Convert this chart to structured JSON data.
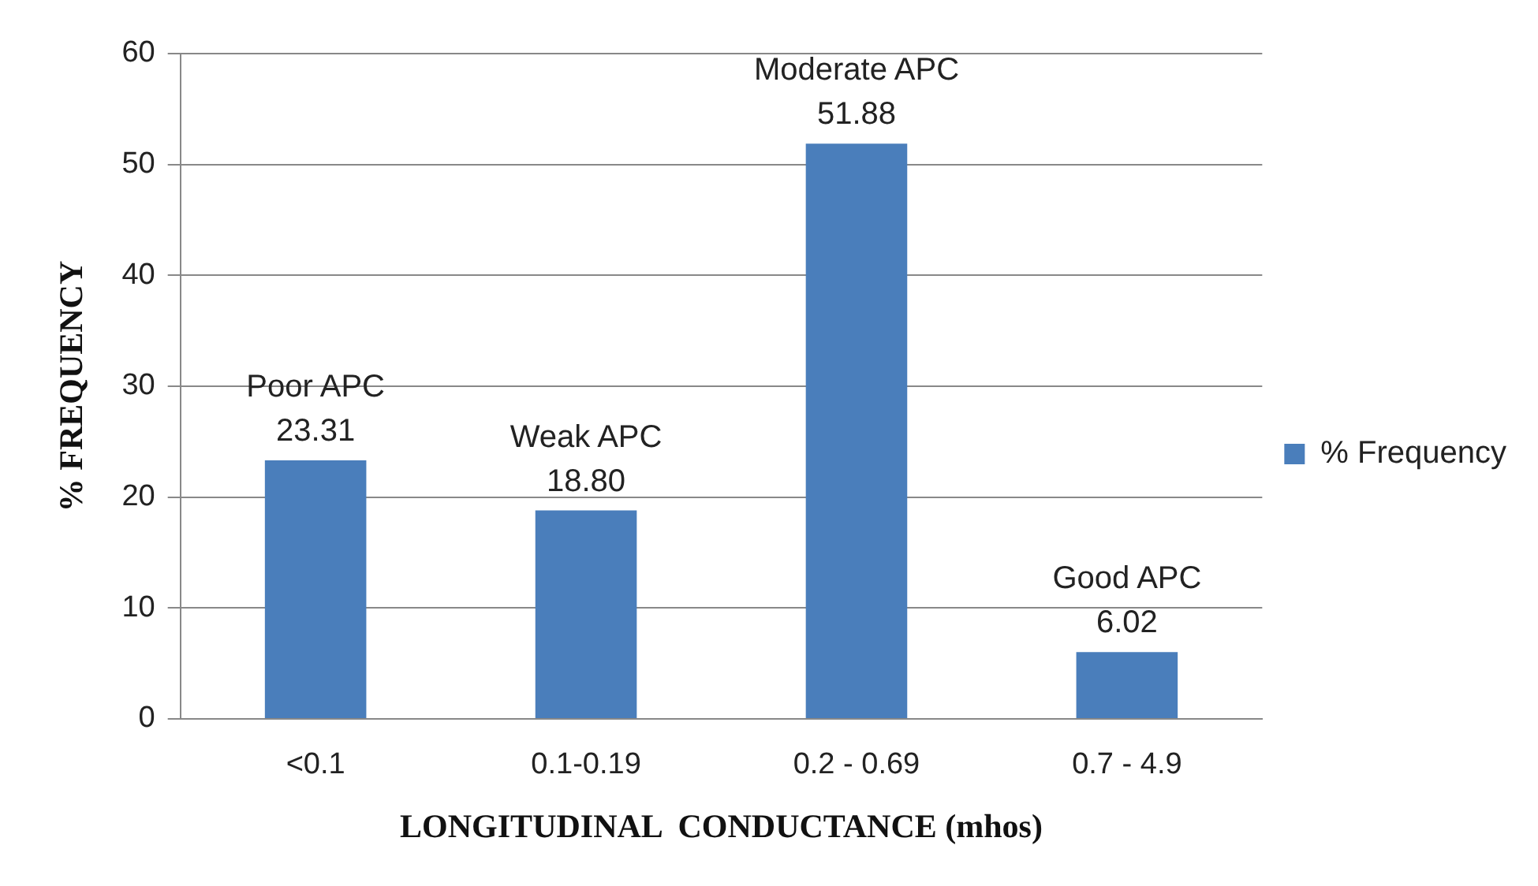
{
  "chart_data": {
    "type": "bar",
    "xlabel": "LONGITUDINAL  CONDUCTANCE (mhos)",
    "ylabel": "% FREQUENCY",
    "categories": [
      "<0.1",
      "0.1-0.19",
      "0.2 - 0.69",
      "0.7 - 4.9"
    ],
    "series": [
      {
        "name": "% Frequency",
        "color": "#4a7ebb",
        "values": [
          23.31,
          18.8,
          51.88,
          6.02
        ],
        "value_labels": [
          "23.31",
          "18.80",
          "51.88",
          "6.02"
        ]
      }
    ],
    "annotations": [
      {
        "text": "Poor APC",
        "x": "<0.1",
        "y": 23.31
      },
      {
        "text": "Weak APC",
        "x": "0.1-0.19",
        "y": 18.8
      },
      {
        "text": "Moderate APC",
        "x": "0.2 - 0.69",
        "y": 51.88
      },
      {
        "text": "Good APC",
        "x": "0.7 - 4.9",
        "y": 6.02
      }
    ],
    "ylim": [
      0,
      60
    ],
    "yticks": [
      0,
      10,
      20,
      30,
      40,
      50,
      60
    ],
    "grid": "y",
    "legend": "right"
  }
}
